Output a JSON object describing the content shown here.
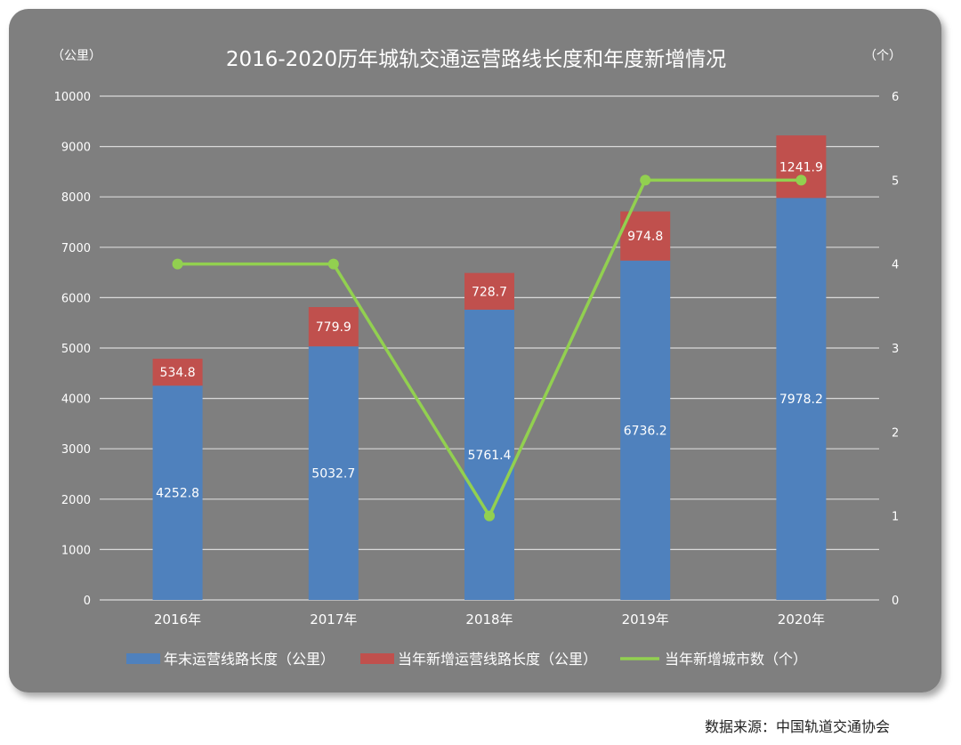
{
  "chart_data": {
    "type": "bar",
    "title": "2016-2020历年城轨交通运营路线长度和年度新增情况",
    "left_axis_unit": "（公里）",
    "right_axis_unit": "（个）",
    "categories": [
      "2016年",
      "2017年",
      "2018年",
      "2019年",
      "2020年"
    ],
    "y_left_ticks": [
      "0",
      "1000",
      "2000",
      "3000",
      "4000",
      "5000",
      "6000",
      "7000",
      "8000",
      "9000",
      "10000"
    ],
    "y_right_ticks": [
      "0",
      "1",
      "2",
      "3",
      "4",
      "5",
      "6"
    ],
    "ylim_left": [
      0,
      10000
    ],
    "ylim_right": [
      0,
      6
    ],
    "stacked": true,
    "grid": true,
    "legend_position": "bottom",
    "series": [
      {
        "name": "年末运营线路长度（公里）",
        "kind": "bar",
        "axis": "left",
        "color": "#4f81bd",
        "values": [
          4252.8,
          5032.7,
          5761.4,
          6736.2,
          7978.2
        ],
        "labels": [
          "4252.8",
          "5032.7",
          "5761.4",
          "6736.2",
          "7978.2"
        ]
      },
      {
        "name": "当年新增运营线路长度（公里）",
        "kind": "bar",
        "axis": "left",
        "color": "#c0504d",
        "values": [
          534.8,
          779.9,
          728.7,
          974.8,
          1241.9
        ],
        "labels": [
          "534.8",
          "779.9",
          "728.7",
          "974.8",
          "1241.9"
        ]
      },
      {
        "name": "当年新增城市数（个）",
        "kind": "line",
        "axis": "right",
        "color": "#92d050",
        "values": [
          4,
          4,
          1,
          5,
          5
        ]
      }
    ]
  },
  "source_note": "数据来源：中国轨道交通协会"
}
